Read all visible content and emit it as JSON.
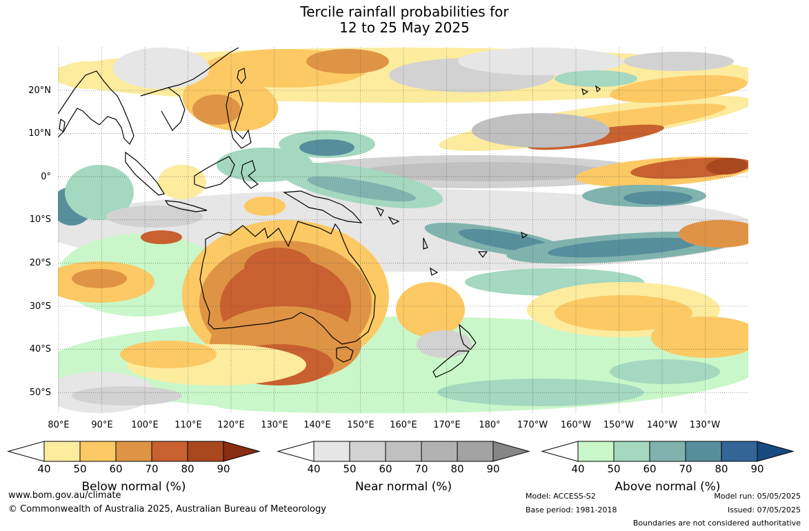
{
  "title": {
    "line1": "Tercile rainfall probabilities for",
    "line2": "12 to 25 May 2025"
  },
  "map": {
    "lat_labels": [
      "20°N",
      "10°N",
      "0°",
      "10°S",
      "20°S",
      "30°S",
      "40°S",
      "50°S"
    ],
    "lon_labels": [
      "80°E",
      "90°E",
      "100°E",
      "110°E",
      "120°E",
      "130°E",
      "140°E",
      "150°E",
      "160°E",
      "170°E",
      "180°",
      "170°W",
      "160°W",
      "150°W",
      "140°W",
      "130°W"
    ]
  },
  "legends": [
    {
      "label": "Below normal (%)",
      "ticks": [
        "40",
        "50",
        "60",
        "70",
        "80",
        "90"
      ],
      "colors": [
        "#ffffff",
        "#fdeb9e",
        "#fcc964",
        "#df9445",
        "#c9602f",
        "#a9481f",
        "#8a2c12"
      ]
    },
    {
      "label": "Near normal (%)",
      "ticks": [
        "40",
        "50",
        "60",
        "70",
        "80",
        "90"
      ],
      "colors": [
        "#ffffff",
        "#e6e6e6",
        "#d2d2d2",
        "#c0c0c0",
        "#b2b2b2",
        "#a3a3a3",
        "#868686"
      ]
    },
    {
      "label": "Above normal (%)",
      "ticks": [
        "40",
        "50",
        "60",
        "70",
        "80",
        "90"
      ],
      "colors": [
        "#ffffff",
        "#c9f7c9",
        "#a4d8c0",
        "#80b3ad",
        "#568e9c",
        "#336597",
        "#184a80"
      ]
    }
  ],
  "footer": {
    "website": "www.bom.gov.au/climate",
    "copyright": "© Commonwealth of Australia 2025, Australian Bureau of Meteorology",
    "model": "Model: ACCESS-S2",
    "base_period": "Base period: 1981-2018",
    "model_run": "Model run: 05/05/2025",
    "issued": "Issued: 07/05/2025",
    "disclaimer": "Boundaries are not considered authoritative"
  }
}
